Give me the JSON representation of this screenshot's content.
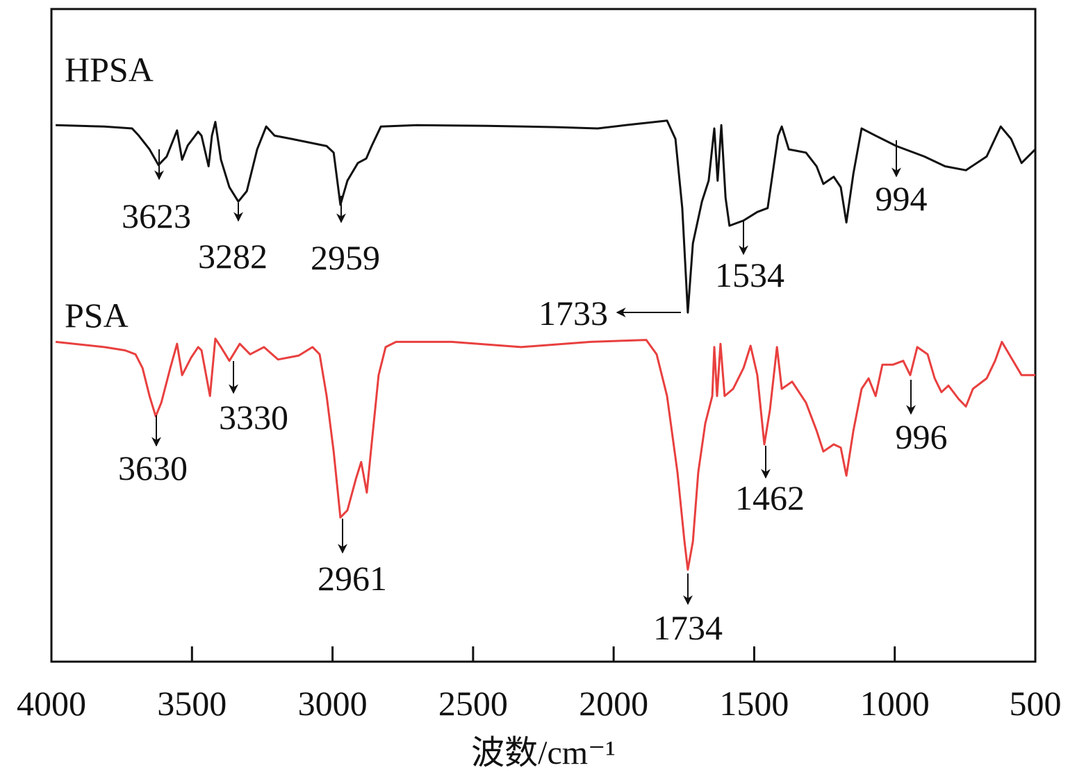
{
  "chart_data": {
    "type": "line",
    "title": "",
    "xlabel": "波数/cm⁻¹",
    "ylabel": "",
    "xlim": [
      4000,
      500
    ],
    "x_reversed": true,
    "ylim": [
      0,
      100
    ],
    "y_axis_labels_shown": false,
    "grid": false,
    "xticks": [
      "4000",
      "3500",
      "3000",
      "2500",
      "2000",
      "1500",
      "1000",
      "500"
    ],
    "series": [
      {
        "name": "HPSA",
        "color": "#111111",
        "points": [
          [
            3985,
            82.2
          ],
          [
            3812,
            82.0
          ],
          [
            3713,
            81.7
          ],
          [
            3689,
            80.6
          ],
          [
            3651,
            78.5
          ],
          [
            3619,
            76.1
          ],
          [
            3590,
            77.4
          ],
          [
            3553,
            81.4
          ],
          [
            3535,
            76.9
          ],
          [
            3515,
            79.1
          ],
          [
            3478,
            81.2
          ],
          [
            3466,
            80.6
          ],
          [
            3441,
            75.9
          ],
          [
            3429,
            80.6
          ],
          [
            3417,
            82.7
          ],
          [
            3397,
            76.9
          ],
          [
            3367,
            72.7
          ],
          [
            3335,
            70.5
          ],
          [
            3305,
            72.1
          ],
          [
            3268,
            78.5
          ],
          [
            3236,
            82.0
          ],
          [
            3206,
            80.6
          ],
          [
            3145,
            80.1
          ],
          [
            3021,
            79.0
          ],
          [
            2996,
            78.0
          ],
          [
            2972,
            70.0
          ],
          [
            2947,
            73.7
          ],
          [
            2910,
            76.4
          ],
          [
            2880,
            77.1
          ],
          [
            2861,
            79.0
          ],
          [
            2828,
            82.0
          ],
          [
            2700,
            82.2
          ],
          [
            2453,
            82.1
          ],
          [
            2205,
            81.9
          ],
          [
            2057,
            81.7
          ],
          [
            1958,
            82.2
          ],
          [
            1810,
            82.9
          ],
          [
            1780,
            80.1
          ],
          [
            1756,
            69.5
          ],
          [
            1736,
            53.5
          ],
          [
            1718,
            64.1
          ],
          [
            1686,
            70.5
          ],
          [
            1662,
            73.7
          ],
          [
            1642,
            81.7
          ],
          [
            1630,
            73.7
          ],
          [
            1617,
            82.2
          ],
          [
            1602,
            71.1
          ],
          [
            1588,
            66.8
          ],
          [
            1538,
            67.6
          ],
          [
            1489,
            68.9
          ],
          [
            1452,
            69.5
          ],
          [
            1415,
            80.6
          ],
          [
            1402,
            82.0
          ],
          [
            1377,
            78.5
          ],
          [
            1316,
            78.0
          ],
          [
            1278,
            75.9
          ],
          [
            1254,
            73.2
          ],
          [
            1217,
            74.3
          ],
          [
            1192,
            72.7
          ],
          [
            1172,
            67.3
          ],
          [
            1147,
            74.8
          ],
          [
            1118,
            81.7
          ],
          [
            1068,
            80.6
          ],
          [
            994,
            79.0
          ],
          [
            895,
            77.4
          ],
          [
            821,
            75.9
          ],
          [
            747,
            75.3
          ],
          [
            673,
            77.4
          ],
          [
            623,
            82.0
          ],
          [
            586,
            80.1
          ],
          [
            549,
            76.4
          ],
          [
            500,
            78.5
          ]
        ]
      },
      {
        "name": "PSA",
        "color": "#e8403f",
        "points": [
          [
            3985,
            49.0
          ],
          [
            3812,
            48.2
          ],
          [
            3738,
            47.7
          ],
          [
            3701,
            47.1
          ],
          [
            3676,
            45.0
          ],
          [
            3651,
            40.7
          ],
          [
            3629,
            37.6
          ],
          [
            3609,
            39.7
          ],
          [
            3577,
            45.0
          ],
          [
            3553,
            48.7
          ],
          [
            3535,
            43.9
          ],
          [
            3503,
            46.6
          ],
          [
            3478,
            48.2
          ],
          [
            3466,
            47.7
          ],
          [
            3436,
            40.7
          ],
          [
            3417,
            49.5
          ],
          [
            3397,
            48.2
          ],
          [
            3367,
            46.1
          ],
          [
            3330,
            48.7
          ],
          [
            3293,
            47.1
          ],
          [
            3244,
            48.2
          ],
          [
            3194,
            46.3
          ],
          [
            3120,
            46.9
          ],
          [
            3071,
            48.2
          ],
          [
            3046,
            47.1
          ],
          [
            3021,
            40.7
          ],
          [
            2996,
            32.2
          ],
          [
            2972,
            22.1
          ],
          [
            2947,
            23.2
          ],
          [
            2917,
            28.0
          ],
          [
            2898,
            30.6
          ],
          [
            2878,
            25.9
          ],
          [
            2861,
            33.3
          ],
          [
            2836,
            43.9
          ],
          [
            2811,
            48.2
          ],
          [
            2774,
            49.0
          ],
          [
            2576,
            49.0
          ],
          [
            2329,
            48.2
          ],
          [
            2082,
            49.0
          ],
          [
            1884,
            49.3
          ],
          [
            1847,
            47.1
          ],
          [
            1810,
            40.7
          ],
          [
            1773,
            29.0
          ],
          [
            1748,
            18.4
          ],
          [
            1736,
            14.1
          ],
          [
            1718,
            18.4
          ],
          [
            1699,
            29.0
          ],
          [
            1674,
            36.5
          ],
          [
            1649,
            40.7
          ],
          [
            1642,
            48.2
          ],
          [
            1632,
            40.7
          ],
          [
            1620,
            48.7
          ],
          [
            1605,
            40.7
          ],
          [
            1575,
            41.8
          ],
          [
            1538,
            45.0
          ],
          [
            1513,
            48.4
          ],
          [
            1489,
            43.9
          ],
          [
            1464,
            33.3
          ],
          [
            1444,
            38.6
          ],
          [
            1419,
            48.2
          ],
          [
            1402,
            41.8
          ],
          [
            1365,
            42.9
          ],
          [
            1316,
            39.7
          ],
          [
            1278,
            35.4
          ],
          [
            1254,
            32.2
          ],
          [
            1217,
            33.3
          ],
          [
            1192,
            32.8
          ],
          [
            1172,
            28.5
          ],
          [
            1147,
            35.4
          ],
          [
            1118,
            41.8
          ],
          [
            1093,
            43.4
          ],
          [
            1068,
            40.7
          ],
          [
            1044,
            45.5
          ],
          [
            1007,
            45.5
          ],
          [
            970,
            46.1
          ],
          [
            945,
            43.9
          ],
          [
            920,
            48.2
          ],
          [
            883,
            47.1
          ],
          [
            858,
            43.4
          ],
          [
            834,
            41.3
          ],
          [
            809,
            42.3
          ],
          [
            772,
            40.2
          ],
          [
            747,
            39.1
          ],
          [
            722,
            41.8
          ],
          [
            673,
            43.4
          ],
          [
            643,
            46.1
          ],
          [
            619,
            49.0
          ],
          [
            586,
            46.6
          ],
          [
            549,
            43.9
          ],
          [
            500,
            43.9
          ]
        ]
      }
    ],
    "annotations": [
      {
        "series": "HPSA",
        "label": "3623"
      },
      {
        "series": "HPSA",
        "label": "3282"
      },
      {
        "series": "HPSA",
        "label": "2959"
      },
      {
        "series": "HPSA",
        "label": "1733"
      },
      {
        "series": "HPSA",
        "label": "1534"
      },
      {
        "series": "HPSA",
        "label": "994"
      },
      {
        "series": "PSA",
        "label": "3630"
      },
      {
        "series": "PSA",
        "label": "3330"
      },
      {
        "series": "PSA",
        "label": "2961"
      },
      {
        "series": "PSA",
        "label": "1734"
      },
      {
        "series": "PSA",
        "label": "1462"
      },
      {
        "series": "PSA",
        "label": "996"
      }
    ]
  }
}
